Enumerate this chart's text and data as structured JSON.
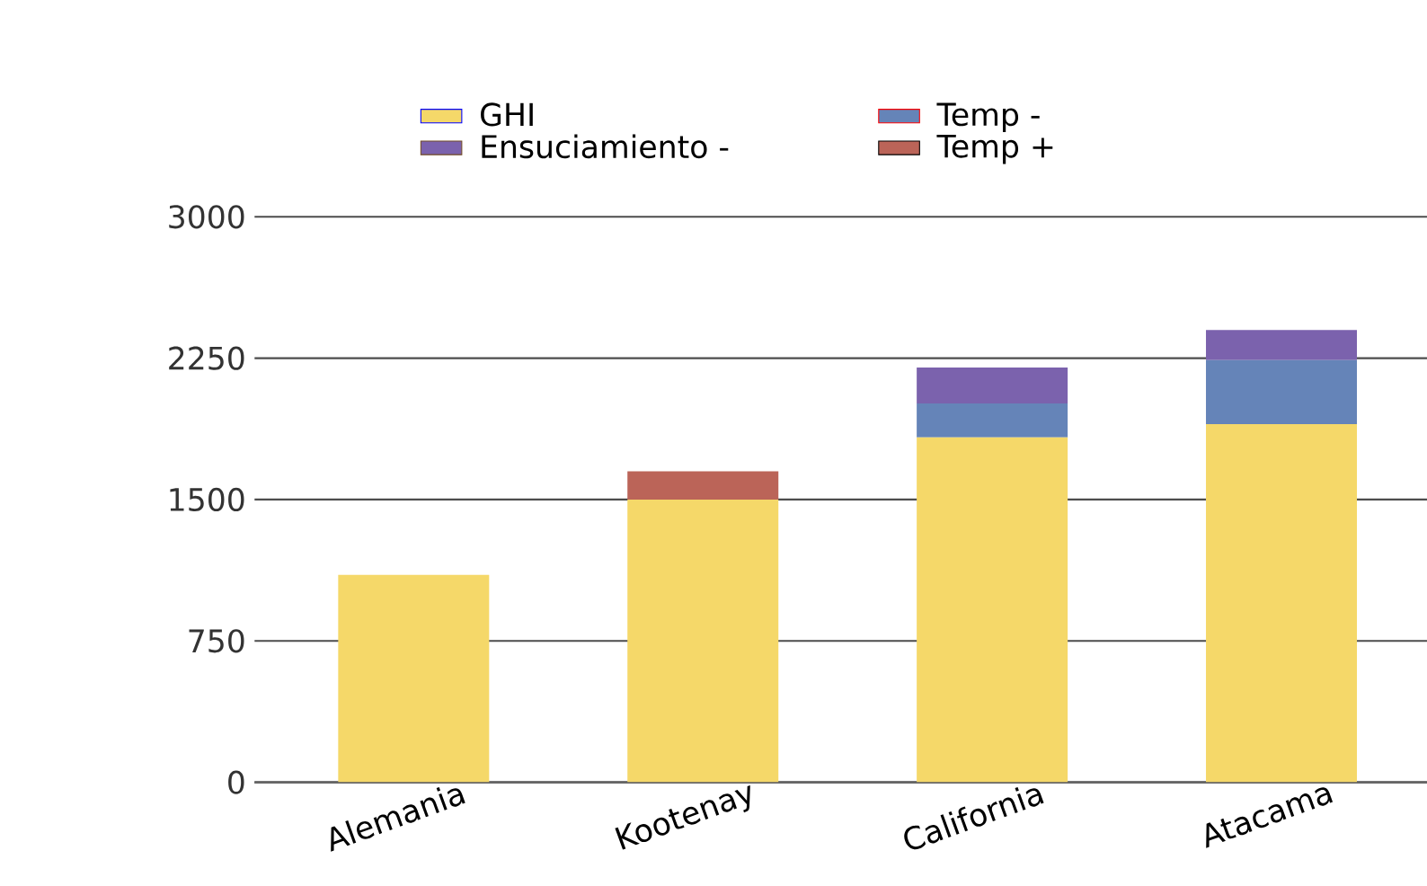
{
  "chart_data": {
    "type": "bar",
    "stacked": true,
    "categories": [
      "Alemania",
      "Kootenay",
      "California",
      "Atacama"
    ],
    "series": [
      {
        "name": "GHI",
        "color": "#f5d869",
        "values": [
          1100,
          1500,
          1830,
          1900
        ]
      },
      {
        "name": "Temp -",
        "color": "#6584b8",
        "values": [
          null,
          null,
          180,
          340
        ]
      },
      {
        "name": "Ensuciamiento -",
        "color": "#7b62ad",
        "values": [
          null,
          null,
          190,
          160
        ]
      },
      {
        "name": "Temp +",
        "color": "#bb6458",
        "values": [
          null,
          150,
          null,
          null
        ]
      }
    ],
    "ylim": [
      0,
      3000
    ],
    "yticks": [
      0,
      750,
      1500,
      2250,
      3000
    ],
    "grid": "y",
    "legend": "top"
  }
}
